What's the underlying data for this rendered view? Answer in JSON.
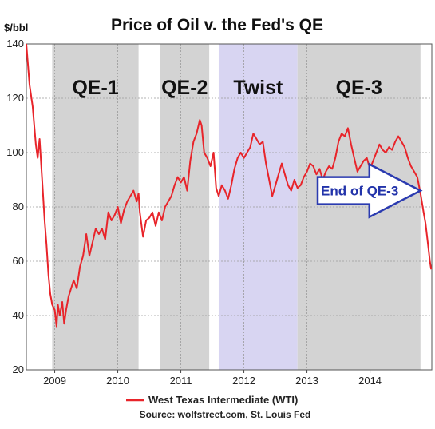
{
  "chart_data": {
    "type": "line",
    "title": "Price of Oil v. the Fed's QE",
    "ylabel": "$/bbl",
    "xlabel": "",
    "ylim": [
      20,
      140
    ],
    "yticks": [
      20,
      40,
      60,
      80,
      100,
      120,
      140
    ],
    "xlim": [
      2008.55,
      2014.98
    ],
    "xticks": [
      {
        "label": "2009",
        "x": 2009.0
      },
      {
        "label": "2010",
        "x": 2010.0
      },
      {
        "label": "2011",
        "x": 2011.0
      },
      {
        "label": "2012",
        "x": 2012.0
      },
      {
        "label": "2013",
        "x": 2013.0
      },
      {
        "label": "2014",
        "x": 2014.0
      }
    ],
    "grid": true,
    "legend_position": "bottom",
    "bands": [
      {
        "label": "QE-1",
        "start": 2008.96,
        "end": 2010.33,
        "color": "#d3d3d3"
      },
      {
        "label": "QE-2",
        "start": 2010.67,
        "end": 2011.45,
        "color": "#d3d3d3"
      },
      {
        "label": "Twist",
        "start": 2011.6,
        "end": 2012.85,
        "color": "#d8d5f2"
      },
      {
        "label": "QE-3",
        "start": 2012.85,
        "end": 2014.8,
        "color": "#d3d3d3"
      }
    ],
    "series": [
      {
        "name": "West Texas Intermediate (WTI)",
        "color": "#e8242a",
        "points": [
          [
            2008.55,
            140
          ],
          [
            2008.6,
            125
          ],
          [
            2008.65,
            117
          ],
          [
            2008.7,
            103
          ],
          [
            2008.73,
            98
          ],
          [
            2008.76,
            105
          ],
          [
            2008.8,
            90
          ],
          [
            2008.84,
            75
          ],
          [
            2008.87,
            66
          ],
          [
            2008.9,
            55
          ],
          [
            2008.93,
            48
          ],
          [
            2008.96,
            44
          ],
          [
            2009.0,
            42
          ],
          [
            2009.03,
            36
          ],
          [
            2009.05,
            44
          ],
          [
            2009.08,
            40
          ],
          [
            2009.12,
            45
          ],
          [
            2009.15,
            37
          ],
          [
            2009.18,
            42
          ],
          [
            2009.22,
            47
          ],
          [
            2009.26,
            50
          ],
          [
            2009.3,
            53
          ],
          [
            2009.35,
            50
          ],
          [
            2009.4,
            58
          ],
          [
            2009.45,
            62
          ],
          [
            2009.5,
            70
          ],
          [
            2009.55,
            62
          ],
          [
            2009.6,
            67
          ],
          [
            2009.65,
            72
          ],
          [
            2009.7,
            70
          ],
          [
            2009.75,
            72
          ],
          [
            2009.8,
            68
          ],
          [
            2009.85,
            78
          ],
          [
            2009.9,
            75
          ],
          [
            2009.95,
            77
          ],
          [
            2010.0,
            80
          ],
          [
            2010.05,
            74
          ],
          [
            2010.1,
            79
          ],
          [
            2010.15,
            82
          ],
          [
            2010.2,
            84
          ],
          [
            2010.25,
            86
          ],
          [
            2010.3,
            82
          ],
          [
            2010.33,
            85
          ],
          [
            2010.35,
            78
          ],
          [
            2010.4,
            69
          ],
          [
            2010.45,
            75
          ],
          [
            2010.5,
            76
          ],
          [
            2010.55,
            78
          ],
          [
            2010.6,
            73
          ],
          [
            2010.65,
            78
          ],
          [
            2010.7,
            75
          ],
          [
            2010.75,
            80
          ],
          [
            2010.8,
            82
          ],
          [
            2010.85,
            84
          ],
          [
            2010.9,
            88
          ],
          [
            2010.95,
            91
          ],
          [
            2011.0,
            89
          ],
          [
            2011.05,
            91
          ],
          [
            2011.1,
            86
          ],
          [
            2011.15,
            97
          ],
          [
            2011.2,
            104
          ],
          [
            2011.25,
            107
          ],
          [
            2011.3,
            112
          ],
          [
            2011.33,
            110
          ],
          [
            2011.37,
            100
          ],
          [
            2011.42,
            98
          ],
          [
            2011.47,
            95
          ],
          [
            2011.52,
            100
          ],
          [
            2011.56,
            87
          ],
          [
            2011.6,
            84
          ],
          [
            2011.65,
            88
          ],
          [
            2011.7,
            86
          ],
          [
            2011.75,
            83
          ],
          [
            2011.8,
            88
          ],
          [
            2011.85,
            94
          ],
          [
            2011.9,
            98
          ],
          [
            2011.95,
            100
          ],
          [
            2012.0,
            98
          ],
          [
            2012.05,
            100
          ],
          [
            2012.1,
            102
          ],
          [
            2012.15,
            107
          ],
          [
            2012.2,
            105
          ],
          [
            2012.25,
            103
          ],
          [
            2012.3,
            104
          ],
          [
            2012.35,
            96
          ],
          [
            2012.4,
            90
          ],
          [
            2012.45,
            84
          ],
          [
            2012.5,
            88
          ],
          [
            2012.55,
            92
          ],
          [
            2012.6,
            96
          ],
          [
            2012.65,
            92
          ],
          [
            2012.7,
            88
          ],
          [
            2012.75,
            86
          ],
          [
            2012.8,
            90
          ],
          [
            2012.85,
            87
          ],
          [
            2012.9,
            88
          ],
          [
            2012.95,
            91
          ],
          [
            2013.0,
            93
          ],
          [
            2013.05,
            96
          ],
          [
            2013.1,
            95
          ],
          [
            2013.15,
            92
          ],
          [
            2013.2,
            94
          ],
          [
            2013.25,
            90
          ],
          [
            2013.3,
            93
          ],
          [
            2013.35,
            95
          ],
          [
            2013.4,
            94
          ],
          [
            2013.45,
            98
          ],
          [
            2013.5,
            104
          ],
          [
            2013.55,
            107
          ],
          [
            2013.6,
            106
          ],
          [
            2013.65,
            109
          ],
          [
            2013.7,
            103
          ],
          [
            2013.75,
            98
          ],
          [
            2013.8,
            93
          ],
          [
            2013.85,
            95
          ],
          [
            2013.9,
            97
          ],
          [
            2013.95,
            98
          ],
          [
            2014.0,
            94
          ],
          [
            2014.05,
            97
          ],
          [
            2014.1,
            100
          ],
          [
            2014.15,
            103
          ],
          [
            2014.2,
            101
          ],
          [
            2014.25,
            100
          ],
          [
            2014.3,
            102
          ],
          [
            2014.35,
            101
          ],
          [
            2014.4,
            104
          ],
          [
            2014.45,
            106
          ],
          [
            2014.5,
            104
          ],
          [
            2014.55,
            102
          ],
          [
            2014.6,
            98
          ],
          [
            2014.65,
            95
          ],
          [
            2014.7,
            93
          ],
          [
            2014.75,
            91
          ],
          [
            2014.8,
            85
          ],
          [
            2014.85,
            78
          ],
          [
            2014.88,
            74
          ],
          [
            2014.92,
            66
          ],
          [
            2014.95,
            60
          ],
          [
            2014.97,
            57
          ]
        ]
      }
    ],
    "annotations": [
      {
        "text": "End of QE-3",
        "points_to": [
          2014.8,
          86
        ]
      }
    ],
    "source": "Source: wolfstreet.com, St. Louis Fed"
  }
}
